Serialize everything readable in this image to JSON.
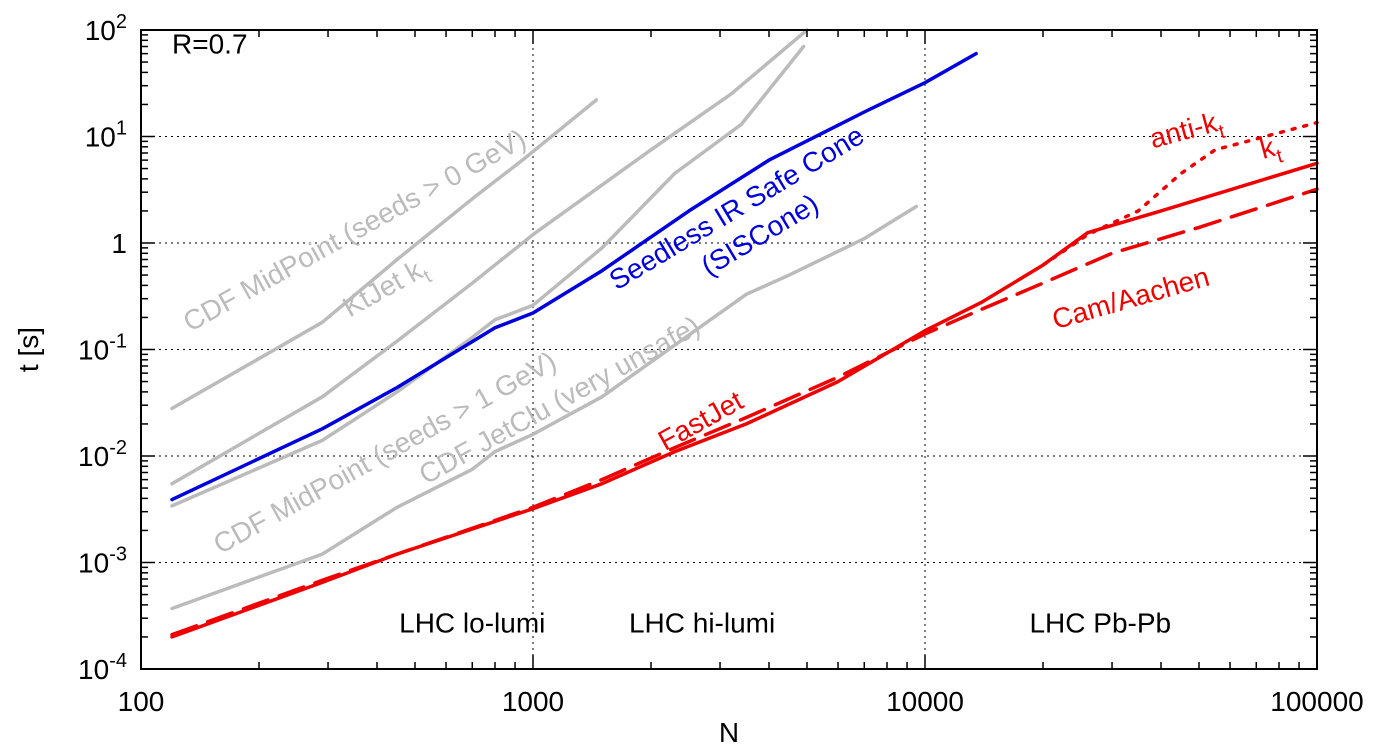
{
  "chart_data": {
    "type": "line",
    "xlabel": "N",
    "ylabel": "t [s]",
    "xscale": "log",
    "yscale": "log",
    "xlim": [
      100,
      100000
    ],
    "ylim": [
      0.0001,
      100
    ],
    "grid": true,
    "legend": "none",
    "x_ticks": [
      {
        "value": 100,
        "label": "100"
      },
      {
        "value": 1000,
        "label": "1000"
      },
      {
        "value": 10000,
        "label": "10000"
      },
      {
        "value": 100000,
        "label": "100000"
      }
    ],
    "y_ticks": [
      {
        "value": 0.0001,
        "base": "10",
        "exp": "-4",
        "plain": ""
      },
      {
        "value": 0.001,
        "base": "10",
        "exp": "-3",
        "plain": ""
      },
      {
        "value": 0.01,
        "base": "10",
        "exp": "-2",
        "plain": ""
      },
      {
        "value": 0.1,
        "base": "10",
        "exp": "-1",
        "plain": ""
      },
      {
        "value": 1,
        "base": "",
        "exp": "",
        "plain": "1"
      },
      {
        "value": 10,
        "base": "10",
        "exp": "1",
        "plain": ""
      },
      {
        "value": 100,
        "base": "10",
        "exp": "2",
        "plain": ""
      }
    ],
    "series": [
      {
        "key": "midpoint0",
        "color": "#bbbbbb",
        "dash": "solid",
        "width": 3.5,
        "points": [
          [
            120,
            0.028
          ],
          [
            290,
            0.18
          ],
          [
            450,
            0.7
          ],
          [
            700,
            2.6
          ],
          [
            850,
            4.5
          ],
          [
            950,
            6.2
          ],
          [
            1450,
            22
          ]
        ]
      },
      {
        "key": "ktjet",
        "color": "#bbbbbb",
        "dash": "solid",
        "width": 3.5,
        "points": [
          [
            120,
            0.0055
          ],
          [
            290,
            0.036
          ],
          [
            450,
            0.12
          ],
          [
            700,
            0.42
          ],
          [
            1000,
            1.2
          ],
          [
            2000,
            7.5
          ],
          [
            3200,
            25
          ],
          [
            5000,
            100
          ]
        ]
      },
      {
        "key": "midpoint1",
        "color": "#bbbbbb",
        "dash": "solid",
        "width": 3.5,
        "points": [
          [
            120,
            0.0034
          ],
          [
            290,
            0.014
          ],
          [
            450,
            0.04
          ],
          [
            700,
            0.13
          ],
          [
            800,
            0.19
          ],
          [
            1000,
            0.26
          ],
          [
            1500,
            0.9
          ],
          [
            2300,
            4.5
          ],
          [
            3400,
            13
          ],
          [
            4900,
            70
          ]
        ]
      },
      {
        "key": "jetclu",
        "color": "#bbbbbb",
        "dash": "solid",
        "width": 3.5,
        "points": [
          [
            120,
            0.00037
          ],
          [
            290,
            0.0012
          ],
          [
            450,
            0.0033
          ],
          [
            700,
            0.0075
          ],
          [
            800,
            0.011
          ],
          [
            1000,
            0.016
          ],
          [
            1500,
            0.036
          ],
          [
            2300,
            0.11
          ],
          [
            3500,
            0.33
          ],
          [
            4500,
            0.5
          ],
          [
            7000,
            1.1
          ],
          [
            9500,
            2.2
          ]
        ]
      },
      {
        "key": "siscone",
        "color": "#0000dd",
        "dash": "solid",
        "width": 3.5,
        "points": [
          [
            120,
            0.0039
          ],
          [
            290,
            0.018
          ],
          [
            450,
            0.044
          ],
          [
            800,
            0.16
          ],
          [
            1000,
            0.22
          ],
          [
            1500,
            0.55
          ],
          [
            2500,
            2
          ],
          [
            4000,
            6
          ],
          [
            7000,
            17
          ],
          [
            10000,
            32
          ],
          [
            13500,
            60
          ]
        ]
      },
      {
        "key": "kt",
        "color": "#ee0000",
        "dash": "solid",
        "width": 3.5,
        "points": [
          [
            120,
            0.0002
          ],
          [
            290,
            0.00065
          ],
          [
            450,
            0.0012
          ],
          [
            1000,
            0.0032
          ],
          [
            1500,
            0.0055
          ],
          [
            2300,
            0.011
          ],
          [
            3500,
            0.02
          ],
          [
            6000,
            0.05
          ],
          [
            10000,
            0.15
          ],
          [
            14000,
            0.28
          ],
          [
            20000,
            0.62
          ],
          [
            26000,
            1.25
          ],
          [
            40000,
            2
          ],
          [
            100000,
            5.6
          ]
        ]
      },
      {
        "key": "camaachen",
        "color": "#ee0000",
        "dash": "long",
        "width": 3.5,
        "points": [
          [
            120,
            0.00021
          ],
          [
            290,
            0.00068
          ],
          [
            450,
            0.0012
          ],
          [
            1000,
            0.0033
          ],
          [
            1500,
            0.006
          ],
          [
            2300,
            0.012
          ],
          [
            3500,
            0.023
          ],
          [
            6000,
            0.055
          ],
          [
            10000,
            0.14
          ],
          [
            14000,
            0.24
          ],
          [
            20000,
            0.42
          ],
          [
            30000,
            0.8
          ],
          [
            50000,
            1.4
          ],
          [
            100000,
            3.2
          ]
        ]
      },
      {
        "key": "antikt",
        "color": "#ee0000",
        "dash": "dot",
        "width": 3.5,
        "points": [
          [
            20000,
            0.62
          ],
          [
            26000,
            1.2
          ],
          [
            35000,
            2
          ],
          [
            45000,
            4.5
          ],
          [
            55000,
            7.5
          ],
          [
            70000,
            9.5
          ],
          [
            100000,
            13.5
          ]
        ]
      }
    ],
    "annotations": [
      {
        "key": "r",
        "color": "#000000",
        "text": "R=0.7",
        "sub": "",
        "rotate": 0,
        "anchor": "start",
        "at": [
          120,
          60
        ]
      },
      {
        "key": "midpoint0",
        "color": "#bbbbbb",
        "text": "CDF MidPoint (seeds > 0 GeV)",
        "sub": "",
        "rotate": -29,
        "anchor": "middle",
        "at": [
          360,
          1.1
        ]
      },
      {
        "key": "ktjet",
        "color": "#bbbbbb",
        "text": "KtJet k",
        "sub": "t",
        "rotate": -29,
        "anchor": "middle",
        "at": [
          430,
          0.32
        ]
      },
      {
        "key": "midpoint1",
        "color": "#bbbbbb",
        "text": "CDF MidPoint (seeds > 1 GeV)",
        "sub": "",
        "rotate": -29,
        "anchor": "middle",
        "at": [
          430,
          0.009
        ]
      },
      {
        "key": "jetclu",
        "color": "#bbbbbb",
        "text": "CDF JetClu (very unsafe)",
        "sub": "",
        "rotate": -29,
        "anchor": "middle",
        "at": [
          1200,
          0.028
        ]
      },
      {
        "key": "siscone1",
        "color": "#0000dd",
        "text": "Seedless IR Safe Cone",
        "sub": "",
        "rotate": -31,
        "anchor": "middle",
        "at": [
          3400,
          1.8
        ]
      },
      {
        "key": "siscone2",
        "color": "#0000dd",
        "text": "(SISCone)",
        "sub": "",
        "rotate": -31,
        "anchor": "middle",
        "at": [
          3900,
          1.0
        ]
      },
      {
        "key": "antikt",
        "color": "#ee0000",
        "text": "anti-k",
        "sub": "t",
        "rotate": -15,
        "anchor": "middle",
        "at": [
          47000,
          9.5
        ]
      },
      {
        "key": "kt",
        "color": "#ee0000",
        "text": "k",
        "sub": "t",
        "rotate": -15,
        "anchor": "middle",
        "at": [
          77000,
          6.5
        ]
      },
      {
        "key": "camaachen",
        "color": "#ee0000",
        "text": "Cam/Aachen",
        "sub": "",
        "rotate": -16,
        "anchor": "middle",
        "at": [
          34000,
          0.25
        ]
      },
      {
        "key": "fastjet",
        "color": "#ee0000",
        "text": "FastJet",
        "sub": "",
        "rotate": -29,
        "anchor": "middle",
        "at": [
          2750,
          0.018
        ]
      },
      {
        "key": "lo",
        "color": "#000000",
        "text": "LHC lo-lumi",
        "sub": "",
        "rotate": 0,
        "anchor": "middle",
        "at": [
          700,
          0.00022
        ]
      },
      {
        "key": "hi",
        "color": "#000000",
        "text": "LHC hi-lumi",
        "sub": "",
        "rotate": 0,
        "anchor": "middle",
        "at": [
          2700,
          0.00022
        ]
      },
      {
        "key": "pb",
        "color": "#000000",
        "text": "LHC Pb-Pb",
        "sub": "",
        "rotate": 0,
        "anchor": "middle",
        "at": [
          28000,
          0.00022
        ]
      }
    ]
  }
}
